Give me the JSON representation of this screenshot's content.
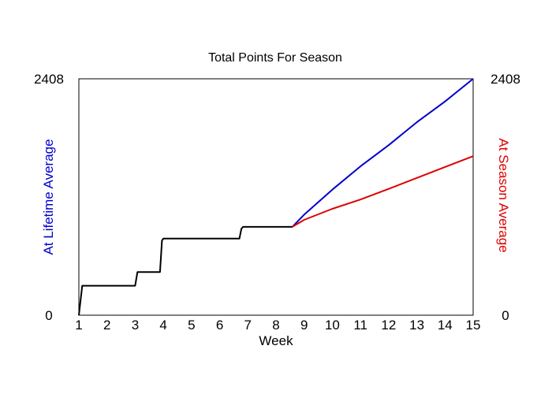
{
  "chart_data": {
    "type": "line",
    "title": "Total Points For Season",
    "xlabel": "Week",
    "y_left_label": "At Lifetime Average",
    "y_right_label": "At Season Average",
    "xlim": [
      1,
      15
    ],
    "ylim": [
      0,
      2408
    ],
    "x_ticks": [
      "1",
      "2",
      "3",
      "4",
      "5",
      "6",
      "7",
      "8",
      "9",
      "10",
      "11",
      "12",
      "13",
      "14",
      "15"
    ],
    "y_left_ticks": [
      "0",
      "2408"
    ],
    "y_right_ticks": [
      "0",
      "2408"
    ],
    "grid": false,
    "colors": {
      "actual": "#000000",
      "lifetime": "#0000cc",
      "season": "#dd0000"
    },
    "series": [
      {
        "key": "actual",
        "x": [
          1.0,
          1.12,
          2.88,
          3.0,
          3.08,
          3.88,
          3.95,
          4.0,
          6.7,
          6.77,
          6.83,
          8.58
        ],
        "y": [
          0,
          300,
          300,
          300,
          440,
          440,
          760,
          780,
          780,
          880,
          900,
          900
        ]
      },
      {
        "key": "lifetime",
        "name": "At Lifetime Average",
        "x": [
          8.58,
          9,
          10,
          11,
          12,
          13,
          14,
          15
        ],
        "y": [
          900,
          1024,
          1279,
          1516,
          1732,
          1966,
          2177,
          2408
        ]
      },
      {
        "key": "season",
        "name": "At Season Average",
        "x": [
          8.58,
          9,
          10,
          11,
          12,
          13,
          14,
          15
        ],
        "y": [
          900,
          971,
          1084,
          1178,
          1287,
          1398,
          1510,
          1620
        ]
      }
    ]
  }
}
